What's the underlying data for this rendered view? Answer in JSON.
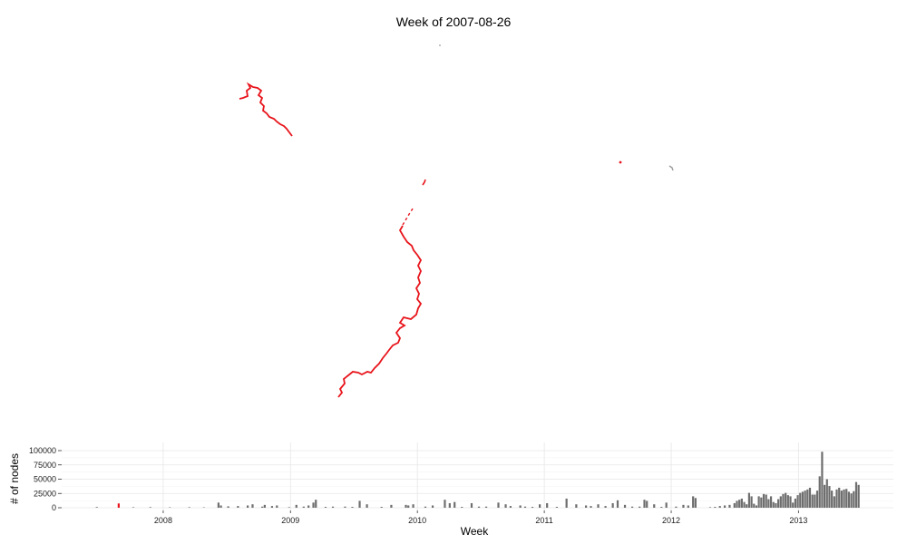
{
  "title": "Week of 2007-08-26",
  "colors": {
    "highlight": "#e8141b",
    "bars": "#6e6e6e",
    "grid": "#e6e6e6",
    "map_gray": "#9a9a9a"
  },
  "chart_data": {
    "type": "bar",
    "title": "",
    "xlabel": "Week",
    "ylabel": "# of nodes",
    "x_range": [
      "2007-03-15",
      "2013-10-01"
    ],
    "ylim": [
      0,
      100000
    ],
    "y_ticks": [
      0,
      25000,
      50000,
      75000,
      100000
    ],
    "y_tick_labels": [
      "0",
      "25000",
      "50000",
      "75000",
      "100000"
    ],
    "x_ticks": [
      "2008-01-01",
      "2009-01-01",
      "2010-01-01",
      "2011-01-01",
      "2012-01-01",
      "2013-01-01"
    ],
    "x_tick_labels": [
      "2008",
      "2009",
      "2010",
      "2011",
      "2012",
      "2013"
    ],
    "highlight_week": "2007-08-26",
    "grid": true,
    "weeks": [
      "2007-06-24",
      "2007-08-26",
      "2007-10-07",
      "2007-11-25",
      "2008-01-20",
      "2008-03-16",
      "2008-04-27",
      "2008-06-08",
      "2008-06-15",
      "2008-07-06",
      "2008-08-03",
      "2008-08-31",
      "2008-09-14",
      "2008-10-12",
      "2008-10-19",
      "2008-11-09",
      "2008-11-23",
      "2008-12-28",
      "2009-01-18",
      "2009-02-08",
      "2009-02-22",
      "2009-03-08",
      "2009-03-15",
      "2009-04-12",
      "2009-05-03",
      "2009-06-07",
      "2009-06-28",
      "2009-07-19",
      "2009-08-09",
      "2009-09-20",
      "2009-10-18",
      "2009-11-29",
      "2009-12-06",
      "2009-12-20",
      "2010-01-24",
      "2010-02-14",
      "2010-03-21",
      "2010-04-04",
      "2010-04-18",
      "2010-05-09",
      "2010-06-06",
      "2010-06-27",
      "2010-07-18",
      "2010-08-22",
      "2010-09-12",
      "2010-09-26",
      "2010-10-24",
      "2010-11-07",
      "2010-11-28",
      "2010-12-19",
      "2011-01-09",
      "2011-02-06",
      "2011-03-06",
      "2011-04-03",
      "2011-05-01",
      "2011-05-15",
      "2011-06-05",
      "2011-06-26",
      "2011-07-17",
      "2011-07-31",
      "2011-08-21",
      "2011-09-11",
      "2011-10-02",
      "2011-10-16",
      "2011-10-23",
      "2011-11-13",
      "2011-12-04",
      "2011-12-18",
      "2012-01-15",
      "2012-02-05",
      "2012-02-19",
      "2012-03-04",
      "2012-03-11",
      "2012-04-22",
      "2012-05-06",
      "2012-05-20",
      "2012-06-03",
      "2012-06-17",
      "2012-07-01",
      "2012-07-08",
      "2012-07-15",
      "2012-07-22",
      "2012-07-29",
      "2012-08-05",
      "2012-08-12",
      "2012-08-19",
      "2012-08-26",
      "2012-09-02",
      "2012-09-09",
      "2012-09-16",
      "2012-09-23",
      "2012-09-30",
      "2012-10-07",
      "2012-10-14",
      "2012-10-21",
      "2012-10-28",
      "2012-11-04",
      "2012-11-11",
      "2012-11-18",
      "2012-11-25",
      "2012-12-02",
      "2012-12-09",
      "2012-12-16",
      "2012-12-23",
      "2012-12-30",
      "2013-01-06",
      "2013-01-13",
      "2013-01-20",
      "2013-01-27",
      "2013-02-03",
      "2013-02-10",
      "2013-02-17",
      "2013-02-24",
      "2013-03-03",
      "2013-03-10",
      "2013-03-17",
      "2013-03-24",
      "2013-03-31",
      "2013-04-07",
      "2013-04-14",
      "2013-04-21",
      "2013-04-28",
      "2013-05-05",
      "2013-05-12",
      "2013-05-19",
      "2013-05-26",
      "2013-06-02",
      "2013-06-09",
      "2013-06-16",
      "2013-06-23"
    ],
    "values": [
      1200,
      7500,
      900,
      1100,
      800,
      1000,
      700,
      9000,
      4000,
      2500,
      3000,
      4000,
      6000,
      2000,
      5000,
      3000,
      4000,
      1000,
      5000,
      2000,
      4000,
      9000,
      14000,
      1500,
      2000,
      2000,
      1500,
      12000,
      6000,
      1500,
      5000,
      5000,
      4000,
      6000,
      2000,
      4000,
      14000,
      8000,
      10000,
      1500,
      8000,
      2000,
      2000,
      9000,
      6000,
      3000,
      4000,
      2000,
      1500,
      6000,
      8000,
      1500,
      16000,
      6000,
      4000,
      3000,
      6000,
      3000,
      8000,
      13000,
      5000,
      2000,
      2000,
      14000,
      12000,
      6000,
      1500,
      9000,
      2000,
      5000,
      4000,
      20000,
      17000,
      1000,
      1500,
      3000,
      4000,
      5000,
      8000,
      12000,
      14000,
      16000,
      10000,
      6000,
      26000,
      20000,
      7000,
      4000,
      20000,
      18000,
      24000,
      23000,
      15000,
      20000,
      10000,
      8000,
      15000,
      20000,
      24000,
      26000,
      22000,
      20000,
      9000,
      16000,
      22000,
      26000,
      28000,
      30000,
      32000,
      35000,
      23000,
      23000,
      30000,
      55000,
      98000,
      40000,
      50000,
      38000,
      30000,
      20000,
      32000,
      35000,
      30000,
      32000,
      33000,
      28000,
      25000,
      29000,
      45000,
      40000
    ]
  }
}
